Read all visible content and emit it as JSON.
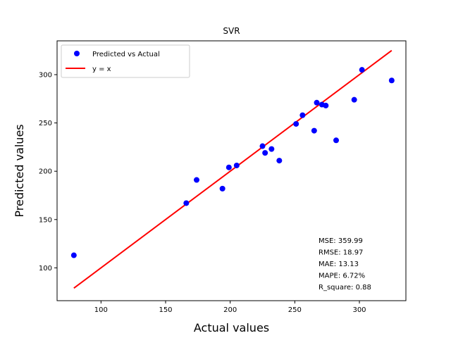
{
  "chart_data": {
    "type": "scatter",
    "title": "SVR",
    "xlabel": "Actual values",
    "ylabel": "Predicted values",
    "xlim": [
      66,
      336
    ],
    "ylim": [
      66,
      335
    ],
    "xticks": [
      100,
      150,
      200,
      250,
      300
    ],
    "yticks": [
      100,
      150,
      200,
      250,
      300
    ],
    "grid": false,
    "legend_position": "top-left",
    "series": [
      {
        "name": "Predicted vs Actual",
        "kind": "scatter",
        "color": "#0000ff",
        "points": [
          [
            79,
            113
          ],
          [
            166,
            167
          ],
          [
            174,
            191
          ],
          [
            194,
            182
          ],
          [
            199,
            204
          ],
          [
            205,
            206
          ],
          [
            225,
            226
          ],
          [
            227,
            219
          ],
          [
            232,
            223
          ],
          [
            238,
            211
          ],
          [
            251,
            249
          ],
          [
            256,
            258
          ],
          [
            265,
            242
          ],
          [
            267,
            271
          ],
          [
            271,
            269
          ],
          [
            274,
            268
          ],
          [
            282,
            232
          ],
          [
            296,
            274
          ],
          [
            302,
            305
          ],
          [
            325,
            294
          ]
        ]
      },
      {
        "name": "y = x",
        "kind": "line",
        "color": "#ff0000",
        "points": [
          [
            79,
            79
          ],
          [
            325,
            325
          ]
        ]
      }
    ],
    "annotations": [
      "MSE: 359.99",
      "RMSE: 18.97",
      "MAE: 13.13",
      "MAPE: 6.72%",
      "R_square: 0.88"
    ]
  }
}
